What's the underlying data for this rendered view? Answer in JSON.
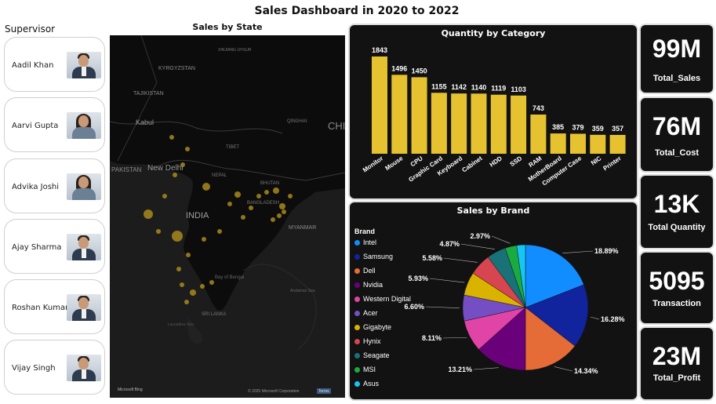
{
  "header": {
    "title": "Sales Dashboard in  2020 to 2022"
  },
  "supervisor": {
    "heading": "Supervisor",
    "people": [
      {
        "name": "Aadil Khan"
      },
      {
        "name": "Aarvi Gupta"
      },
      {
        "name": "Advika Joshi"
      },
      {
        "name": "Ajay Sharma"
      },
      {
        "name": "Roshan Kumar"
      },
      {
        "name": "Vijay Singh"
      }
    ]
  },
  "map": {
    "title": "Sales by State",
    "labels": {
      "kyrgyzstan": "KYRGYZSTAN",
      "tajikistan": "TAJIKISTAN",
      "xinjiang": "XINJIANG UYGUR",
      "kabul": "Kabul",
      "pakistan": "PAKISTAN",
      "newdelhi": "New Delhi",
      "nepal": "NEPAL",
      "tibet": "TIBET",
      "qinghai": "QINGHAI",
      "china": "CHI",
      "bhutan": "BHUTAN",
      "bangladesh": "BANGLADESH",
      "india": "INDIA",
      "myanmar": "MYANMAR",
      "bay": "Bay of Bengal",
      "andaman": "Andaman Sea",
      "srilanka": "SRI LANKA",
      "laccadive": "Laccadive Sea"
    },
    "attribution": "Microsoft Bing",
    "copyright": "© 2025 Microsoft Corporation",
    "terms": "Terms"
  },
  "quantity_chart": {
    "title": "Quantity by Category",
    "bar_color": "#e6c130",
    "chart_data": {
      "type": "bar",
      "categories": [
        "Monitor",
        "Mouse",
        "CPU",
        "Graphic Card",
        "Keyboard",
        "Cabinet",
        "HDD",
        "SSD",
        "RAM",
        "MotherBoard",
        "Computer Case",
        "NIC",
        "Printer"
      ],
      "values": [
        1843,
        1496,
        1450,
        1155,
        1142,
        1140,
        1119,
        1103,
        743,
        385,
        379,
        359,
        357
      ]
    }
  },
  "brand_chart": {
    "title": "Sales by Brand",
    "legend_title": "Brand",
    "chart_data": {
      "type": "pie",
      "categories": [
        "Intel",
        "Samsung",
        "Dell",
        "Nvidia",
        "Western Digital",
        "Acer",
        "Gigabyte",
        "Hynix",
        "Seagate",
        "MSI",
        "Asus"
      ],
      "values": [
        18.89,
        16.28,
        14.34,
        13.21,
        8.11,
        6.6,
        5.93,
        5.58,
        4.87,
        2.97,
        2.22
      ],
      "labels": [
        "18.89%",
        "16.28%",
        "14.34%",
        "13.21%",
        "8.11%",
        "6.60%",
        "5.93%",
        "5.58%",
        "4.87%",
        "2.97%",
        ""
      ],
      "colors": [
        "#118dff",
        "#12239e",
        "#e66c37",
        "#6b007b",
        "#e044a7",
        "#744ec2",
        "#d9b300",
        "#d64550",
        "#197278",
        "#1aab40",
        "#15c6f4"
      ]
    }
  },
  "kpis": [
    {
      "value": "99M",
      "label": "Total_Sales"
    },
    {
      "value": "76M",
      "label": "Total_Cost"
    },
    {
      "value": "13K",
      "label": "Total Quantity"
    },
    {
      "value": "5095",
      "label": "Transaction"
    },
    {
      "value": "23M",
      "label": "Total_Profit"
    }
  ]
}
